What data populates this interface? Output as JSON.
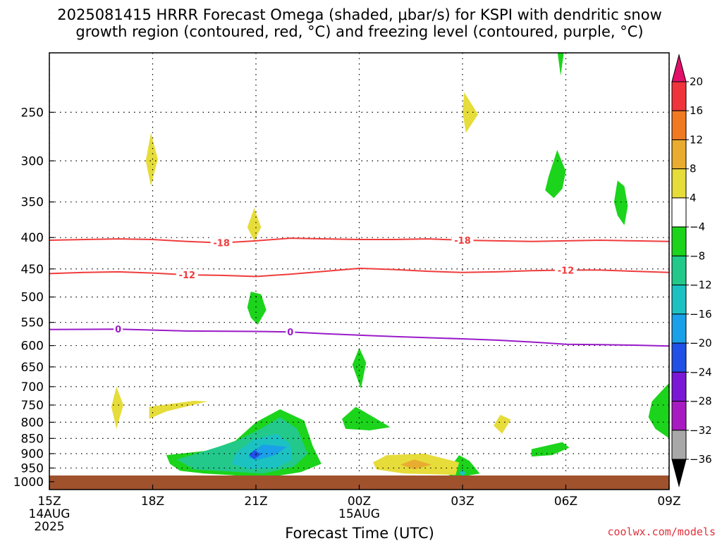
{
  "chart_data": {
    "type": "heatmap",
    "title_line1": "2025081415 HRRR Forecast Omega (shaded, μbar/s) for KSPI with dendritic snow",
    "title_line2": "growth region (contoured, red, °C) and freezing level (contoured, purple, °C)",
    "xlabel": "Forecast Time (UTC)",
    "ylabel": "",
    "credit": "coolwx.com/models",
    "x_ticks": [
      {
        "hour": 0,
        "label": "15Z",
        "sub1": "14AUG",
        "sub2": "2025"
      },
      {
        "hour": 3,
        "label": "18Z",
        "sub1": "",
        "sub2": ""
      },
      {
        "hour": 6,
        "label": "21Z",
        "sub1": "",
        "sub2": ""
      },
      {
        "hour": 9,
        "label": "00Z",
        "sub1": "15AUG",
        "sub2": ""
      },
      {
        "hour": 12,
        "label": "03Z",
        "sub1": "",
        "sub2": ""
      },
      {
        "hour": 15,
        "label": "06Z",
        "sub1": "",
        "sub2": ""
      },
      {
        "hour": 18,
        "label": "09Z",
        "sub1": "",
        "sub2": ""
      }
    ],
    "xlim": [
      0,
      18
    ],
    "ylim": [
      200,
      1030
    ],
    "y_scale": "log-pressure",
    "y_ticks": [
      250,
      300,
      350,
      400,
      450,
      500,
      550,
      600,
      650,
      700,
      750,
      800,
      850,
      900,
      950,
      1000
    ],
    "grid": true,
    "colorbar": {
      "labels": [
        "20",
        "16",
        "12",
        "8",
        "4",
        "−4",
        "−8",
        "−12",
        "−16",
        "−20",
        "−24",
        "−28",
        "−32",
        "−36"
      ],
      "colors": [
        "#e3106b",
        "#f0343c",
        "#f07a22",
        "#e8ad30",
        "#e6dc3a",
        "#ffffff",
        "#1bd41b",
        "#22c98a",
        "#1cc2c2",
        "#1aa0e8",
        "#2050e6",
        "#7a18d6",
        "#a81bc2",
        "#a8a8a8",
        "#000000"
      ]
    },
    "contours": [
      {
        "name": "-18",
        "color": "#f03c3c",
        "label": "-18",
        "label_hours": [
          5,
          12
        ],
        "points": [
          [
            0,
            404
          ],
          [
            2,
            402
          ],
          [
            3,
            403
          ],
          [
            4,
            406
          ],
          [
            5,
            408
          ],
          [
            6,
            405
          ],
          [
            7,
            401
          ],
          [
            8,
            402
          ],
          [
            9,
            403
          ],
          [
            10,
            403
          ],
          [
            11,
            402
          ],
          [
            12,
            404
          ],
          [
            13,
            405
          ],
          [
            14,
            406
          ],
          [
            15,
            405
          ],
          [
            16,
            404
          ],
          [
            17,
            405
          ],
          [
            18,
            406
          ]
        ]
      },
      {
        "name": "-12",
        "color": "#f03c3c",
        "label": "-12",
        "label_hours": [
          4,
          15
        ],
        "points": [
          [
            0,
            458
          ],
          [
            1,
            456
          ],
          [
            2,
            455
          ],
          [
            3,
            457
          ],
          [
            4,
            460
          ],
          [
            5,
            461
          ],
          [
            6,
            463
          ],
          [
            7,
            459
          ],
          [
            8,
            454
          ],
          [
            9,
            449
          ],
          [
            10,
            451
          ],
          [
            11,
            454
          ],
          [
            12,
            456
          ],
          [
            13,
            455
          ],
          [
            14,
            453
          ],
          [
            15,
            452
          ],
          [
            16,
            452
          ],
          [
            17,
            454
          ],
          [
            18,
            456
          ]
        ]
      },
      {
        "name": "0",
        "color": "#9a1bc8",
        "label": "0",
        "label_hours": [
          2,
          7
        ],
        "points": [
          [
            0,
            565
          ],
          [
            2,
            564
          ],
          [
            4,
            568
          ],
          [
            6,
            569
          ],
          [
            7,
            570
          ],
          [
            8,
            574
          ],
          [
            10,
            580
          ],
          [
            12,
            585
          ],
          [
            13,
            588
          ],
          [
            14,
            592
          ],
          [
            15,
            597
          ],
          [
            16,
            598
          ],
          [
            17,
            599
          ],
          [
            18,
            601
          ]
        ]
      }
    ],
    "omega_regions": [
      {
        "value": 4,
        "points": [
          [
            2.8,
            300
          ],
          [
            2.95,
            270
          ],
          [
            3.15,
            298
          ],
          [
            2.95,
            330
          ]
        ]
      },
      {
        "value": 4,
        "points": [
          [
            5.75,
            385
          ],
          [
            5.95,
            358
          ],
          [
            6.15,
            385
          ],
          [
            5.95,
            405
          ]
        ]
      },
      {
        "value": 4,
        "points": [
          [
            12.0,
            250
          ],
          [
            12.05,
            232
          ],
          [
            12.45,
            252
          ],
          [
            12.1,
            270
          ]
        ]
      },
      {
        "value": -4,
        "points": [
          [
            14.75,
            198
          ],
          [
            14.85,
            180
          ],
          [
            14.95,
            198
          ],
          [
            14.85,
            218
          ]
        ]
      },
      {
        "value": -4,
        "points": [
          [
            14.5,
            318
          ],
          [
            14.75,
            288
          ],
          [
            15.0,
            312
          ],
          [
            14.9,
            333
          ],
          [
            14.65,
            345
          ],
          [
            14.4,
            335
          ]
        ]
      },
      {
        "value": -4,
        "points": [
          [
            16.4,
            350
          ],
          [
            16.5,
            323
          ],
          [
            16.7,
            330
          ],
          [
            16.8,
            355
          ],
          [
            16.7,
            382
          ],
          [
            16.5,
            368
          ]
        ]
      },
      {
        "value": -4,
        "points": [
          [
            5.75,
            520
          ],
          [
            5.85,
            490
          ],
          [
            6.15,
            495
          ],
          [
            6.3,
            525
          ],
          [
            6.05,
            555
          ],
          [
            5.85,
            540
          ]
        ]
      },
      {
        "value": 4,
        "points": [
          [
            1.8,
            755
          ],
          [
            1.95,
            700
          ],
          [
            2.15,
            750
          ],
          [
            1.95,
            820
          ]
        ]
      },
      {
        "value": 4,
        "points": [
          [
            2.9,
            755
          ],
          [
            4.2,
            738
          ],
          [
            4.6,
            740
          ],
          [
            3.4,
            768
          ],
          [
            2.9,
            790
          ]
        ]
      },
      {
        "value": 4,
        "points": [
          [
            12.9,
            810
          ],
          [
            13.1,
            778
          ],
          [
            13.4,
            792
          ],
          [
            13.15,
            835
          ],
          [
            13.05,
            825
          ]
        ]
      },
      {
        "value": -4,
        "points": [
          [
            8.8,
            645
          ],
          [
            9.0,
            605
          ],
          [
            9.2,
            640
          ],
          [
            9.05,
            705
          ]
        ]
      },
      {
        "value": -4,
        "points": [
          [
            8.5,
            790
          ],
          [
            8.9,
            755
          ],
          [
            9.5,
            790
          ],
          [
            9.9,
            815
          ],
          [
            9.3,
            825
          ],
          [
            8.6,
            820
          ]
        ]
      },
      {
        "value": -4,
        "points": [
          [
            14.0,
            885
          ],
          [
            14.9,
            862
          ],
          [
            15.1,
            880
          ],
          [
            14.6,
            905
          ],
          [
            14.0,
            910
          ]
        ]
      },
      {
        "value": -4,
        "points": [
          [
            17.5,
            740
          ],
          [
            18.0,
            690
          ],
          [
            18.0,
            850
          ],
          [
            17.6,
            820
          ],
          [
            17.4,
            785
          ]
        ]
      },
      {
        "value": -4,
        "points": [
          [
            11.6,
            955
          ],
          [
            11.9,
            905
          ],
          [
            12.2,
            925
          ],
          [
            12.5,
            970
          ],
          [
            11.8,
            985
          ],
          [
            11.6,
            975
          ]
        ]
      },
      {
        "value": -12,
        "points": [
          [
            11.9,
            968
          ],
          [
            12.0,
            955
          ],
          [
            12.1,
            968
          ],
          [
            12.0,
            978
          ]
        ]
      },
      {
        "value": 4,
        "points": [
          [
            9.4,
            930
          ],
          [
            9.8,
            905
          ],
          [
            10.9,
            900
          ],
          [
            11.9,
            930
          ],
          [
            11.8,
            975
          ],
          [
            10.3,
            970
          ],
          [
            9.5,
            955
          ]
        ]
      },
      {
        "value": 12,
        "points": [
          [
            10.2,
            938
          ],
          [
            10.6,
            920
          ],
          [
            11.1,
            938
          ],
          [
            10.6,
            955
          ]
        ]
      },
      {
        "value": -4,
        "points": [
          [
            3.4,
            905
          ],
          [
            4.6,
            890
          ],
          [
            5.4,
            858
          ],
          [
            6.0,
            800
          ],
          [
            6.7,
            762
          ],
          [
            7.4,
            795
          ],
          [
            7.65,
            875
          ],
          [
            7.9,
            935
          ],
          [
            7.3,
            965
          ],
          [
            6.3,
            985
          ],
          [
            5.2,
            975
          ],
          [
            4.5,
            970
          ],
          [
            3.8,
            960
          ],
          [
            3.5,
            935
          ]
        ]
      },
      {
        "value": -8,
        "points": [
          [
            3.7,
            920
          ],
          [
            4.4,
            895
          ],
          [
            5.4,
            860
          ],
          [
            6.1,
            822
          ],
          [
            6.7,
            785
          ],
          [
            7.2,
            820
          ],
          [
            7.5,
            900
          ],
          [
            7.1,
            945
          ],
          [
            6.2,
            970
          ],
          [
            5.2,
            962
          ],
          [
            4.2,
            955
          ]
        ]
      },
      {
        "value": -12,
        "points": [
          [
            5.4,
            900
          ],
          [
            5.9,
            855
          ],
          [
            6.6,
            835
          ],
          [
            7.0,
            868
          ],
          [
            7.05,
            920
          ],
          [
            6.6,
            950
          ],
          [
            5.8,
            955
          ],
          [
            5.3,
            935
          ]
        ]
      },
      {
        "value": -16,
        "points": [
          [
            5.8,
            900
          ],
          [
            6.2,
            870
          ],
          [
            6.9,
            877
          ],
          [
            6.55,
            905
          ],
          [
            6.1,
            920
          ],
          [
            5.8,
            915
          ]
        ]
      },
      {
        "value": -24,
        "points": [
          [
            5.8,
            905
          ],
          [
            5.95,
            888
          ],
          [
            6.15,
            902
          ],
          [
            5.95,
            920
          ]
        ]
      }
    ]
  }
}
